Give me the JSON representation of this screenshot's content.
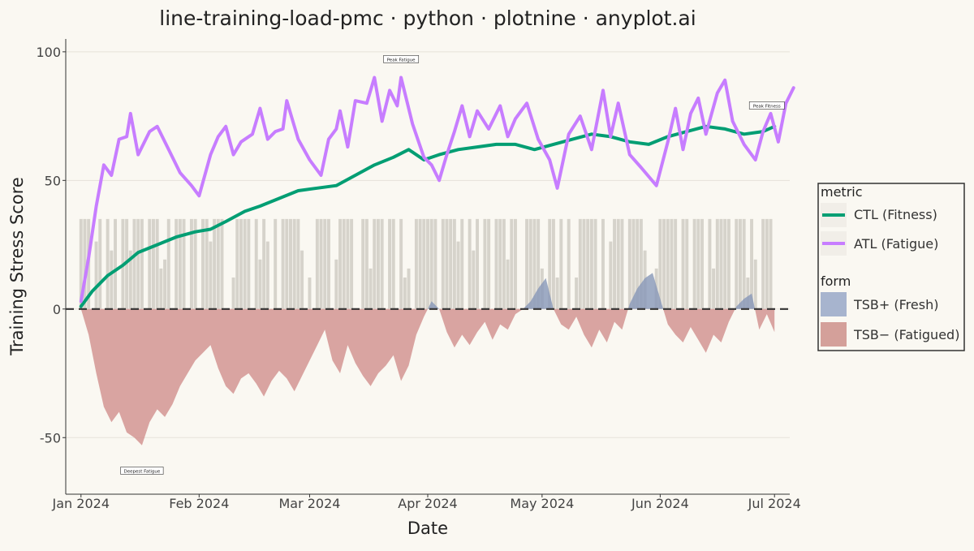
{
  "chart_data": {
    "type": "line",
    "title": "line-training-load-pmc · python · plotnine · anyplot.ai",
    "xlabel": "Date",
    "ylabel": "Training Stress Score",
    "x_range": [
      "2023-12-28",
      "2024-07-05"
    ],
    "ylim": [
      -72,
      105
    ],
    "grid": "horizontal",
    "legend_position": "right",
    "x_ticks": [
      {
        "date": "2024-01-01",
        "label": "Jan 2024"
      },
      {
        "date": "2024-02-01",
        "label": "Feb 2024"
      },
      {
        "date": "2024-03-01",
        "label": "Mar 2024"
      },
      {
        "date": "2024-04-01",
        "label": "Apr 2024"
      },
      {
        "date": "2024-05-01",
        "label": "May 2024"
      },
      {
        "date": "2024-06-01",
        "label": "Jun 2024"
      },
      {
        "date": "2024-07-01",
        "label": "Jul 2024"
      }
    ],
    "y_ticks": [
      {
        "value": 100,
        "label": "100"
      },
      {
        "value": 50,
        "label": "50"
      },
      {
        "value": 0,
        "label": "0"
      },
      {
        "value": -50,
        "label": "-50"
      }
    ],
    "reference_line": {
      "y": 0,
      "style": "dashed"
    },
    "series": [
      {
        "name": "CTL (Fitness)",
        "color": "#009E73",
        "points": [
          [
            "2024-01-01",
            1
          ],
          [
            "2024-01-04",
            7
          ],
          [
            "2024-01-08",
            13
          ],
          [
            "2024-01-12",
            17
          ],
          [
            "2024-01-16",
            22
          ],
          [
            "2024-01-21",
            25
          ],
          [
            "2024-01-26",
            28
          ],
          [
            "2024-01-31",
            30
          ],
          [
            "2024-02-04",
            31
          ],
          [
            "2024-02-08",
            34
          ],
          [
            "2024-02-13",
            38
          ],
          [
            "2024-02-17",
            40
          ],
          [
            "2024-02-22",
            43
          ],
          [
            "2024-02-27",
            46
          ],
          [
            "2024-03-03",
            47
          ],
          [
            "2024-03-08",
            48
          ],
          [
            "2024-03-13",
            52
          ],
          [
            "2024-03-18",
            56
          ],
          [
            "2024-03-23",
            59
          ],
          [
            "2024-03-27",
            62
          ],
          [
            "2024-03-31",
            58
          ],
          [
            "2024-04-04",
            60
          ],
          [
            "2024-04-09",
            62
          ],
          [
            "2024-04-14",
            63
          ],
          [
            "2024-04-19",
            64
          ],
          [
            "2024-04-24",
            64
          ],
          [
            "2024-04-29",
            62
          ],
          [
            "2024-05-04",
            64
          ],
          [
            "2024-05-09",
            66
          ],
          [
            "2024-05-14",
            68
          ],
          [
            "2024-05-19",
            67
          ],
          [
            "2024-05-24",
            65
          ],
          [
            "2024-05-29",
            64
          ],
          [
            "2024-06-03",
            67
          ],
          [
            "2024-06-08",
            69
          ],
          [
            "2024-06-13",
            71
          ],
          [
            "2024-06-18",
            70
          ],
          [
            "2024-06-23",
            68
          ],
          [
            "2024-06-28",
            69
          ],
          [
            "2024-07-01",
            71
          ]
        ]
      },
      {
        "name": "ATL (Fatigue)",
        "color": "#C77DFF",
        "points": [
          [
            "2024-01-01",
            3
          ],
          [
            "2024-01-03",
            20
          ],
          [
            "2024-01-05",
            40
          ],
          [
            "2024-01-07",
            56
          ],
          [
            "2024-01-09",
            52
          ],
          [
            "2024-01-11",
            66
          ],
          [
            "2024-01-13",
            67
          ],
          [
            "2024-01-14",
            76
          ],
          [
            "2024-01-16",
            60
          ],
          [
            "2024-01-19",
            69
          ],
          [
            "2024-01-21",
            71
          ],
          [
            "2024-01-24",
            62
          ],
          [
            "2024-01-27",
            53
          ],
          [
            "2024-01-30",
            48
          ],
          [
            "2024-02-01",
            44
          ],
          [
            "2024-02-04",
            60
          ],
          [
            "2024-02-06",
            67
          ],
          [
            "2024-02-08",
            71
          ],
          [
            "2024-02-10",
            60
          ],
          [
            "2024-02-12",
            65
          ],
          [
            "2024-02-15",
            68
          ],
          [
            "2024-02-17",
            78
          ],
          [
            "2024-02-19",
            66
          ],
          [
            "2024-02-21",
            69
          ],
          [
            "2024-02-23",
            70
          ],
          [
            "2024-02-24",
            81
          ],
          [
            "2024-02-27",
            66
          ],
          [
            "2024-03-01",
            58
          ],
          [
            "2024-03-04",
            52
          ],
          [
            "2024-03-06",
            66
          ],
          [
            "2024-03-08",
            70
          ],
          [
            "2024-03-09",
            77
          ],
          [
            "2024-03-11",
            63
          ],
          [
            "2024-03-13",
            81
          ],
          [
            "2024-03-16",
            80
          ],
          [
            "2024-03-18",
            90
          ],
          [
            "2024-03-20",
            73
          ],
          [
            "2024-03-22",
            85
          ],
          [
            "2024-03-24",
            79
          ],
          [
            "2024-03-25",
            90
          ],
          [
            "2024-03-28",
            72
          ],
          [
            "2024-03-31",
            59
          ],
          [
            "2024-04-02",
            56
          ],
          [
            "2024-04-04",
            50
          ],
          [
            "2024-04-06",
            60
          ],
          [
            "2024-04-08",
            69
          ],
          [
            "2024-04-10",
            79
          ],
          [
            "2024-04-12",
            67
          ],
          [
            "2024-04-14",
            77
          ],
          [
            "2024-04-17",
            70
          ],
          [
            "2024-04-20",
            79
          ],
          [
            "2024-04-22",
            67
          ],
          [
            "2024-04-24",
            74
          ],
          [
            "2024-04-27",
            80
          ],
          [
            "2024-04-30",
            66
          ],
          [
            "2024-05-03",
            58
          ],
          [
            "2024-05-05",
            47
          ],
          [
            "2024-05-08",
            68
          ],
          [
            "2024-05-11",
            75
          ],
          [
            "2024-05-14",
            62
          ],
          [
            "2024-05-17",
            85
          ],
          [
            "2024-05-19",
            67
          ],
          [
            "2024-05-21",
            80
          ],
          [
            "2024-05-24",
            60
          ],
          [
            "2024-05-27",
            55
          ],
          [
            "2024-05-31",
            48
          ],
          [
            "2024-06-03",
            65
          ],
          [
            "2024-06-05",
            78
          ],
          [
            "2024-06-07",
            62
          ],
          [
            "2024-06-09",
            76
          ],
          [
            "2024-06-11",
            82
          ],
          [
            "2024-06-13",
            68
          ],
          [
            "2024-06-16",
            84
          ],
          [
            "2024-06-18",
            89
          ],
          [
            "2024-06-20",
            73
          ],
          [
            "2024-06-23",
            64
          ],
          [
            "2024-06-26",
            58
          ],
          [
            "2024-06-28",
            69
          ],
          [
            "2024-06-30",
            76
          ],
          [
            "2024-07-02",
            65
          ],
          [
            "2024-07-04",
            80
          ],
          [
            "2024-07-06",
            86
          ]
        ]
      }
    ],
    "form_series": [
      {
        "name": "TSB+ (Fresh)",
        "color": "#A7B4CE",
        "fill": "#8797B8"
      },
      {
        "name": "TSB− (Fatigued)",
        "color": "#D4A09A",
        "fill": "#D18F8C"
      }
    ],
    "tsb": [
      [
        "2024-01-01",
        0
      ],
      [
        "2024-01-03",
        -10
      ],
      [
        "2024-01-05",
        -25
      ],
      [
        "2024-01-07",
        -38
      ],
      [
        "2024-01-09",
        -44
      ],
      [
        "2024-01-11",
        -40
      ],
      [
        "2024-01-13",
        -48
      ],
      [
        "2024-01-15",
        -50
      ],
      [
        "2024-01-17",
        -53
      ],
      [
        "2024-01-19",
        -44
      ],
      [
        "2024-01-21",
        -39
      ],
      [
        "2024-01-23",
        -42
      ],
      [
        "2024-01-25",
        -37
      ],
      [
        "2024-01-27",
        -30
      ],
      [
        "2024-01-29",
        -25
      ],
      [
        "2024-01-31",
        -20
      ],
      [
        "2024-02-02",
        -17
      ],
      [
        "2024-02-04",
        -14
      ],
      [
        "2024-02-06",
        -23
      ],
      [
        "2024-02-08",
        -30
      ],
      [
        "2024-02-10",
        -33
      ],
      [
        "2024-02-12",
        -27
      ],
      [
        "2024-02-14",
        -25
      ],
      [
        "2024-02-16",
        -29
      ],
      [
        "2024-02-18",
        -34
      ],
      [
        "2024-02-20",
        -28
      ],
      [
        "2024-02-22",
        -24
      ],
      [
        "2024-02-24",
        -27
      ],
      [
        "2024-02-26",
        -32
      ],
      [
        "2024-02-28",
        -26
      ],
      [
        "2024-03-01",
        -20
      ],
      [
        "2024-03-03",
        -14
      ],
      [
        "2024-03-05",
        -8
      ],
      [
        "2024-03-07",
        -20
      ],
      [
        "2024-03-09",
        -25
      ],
      [
        "2024-03-11",
        -14
      ],
      [
        "2024-03-13",
        -21
      ],
      [
        "2024-03-15",
        -26
      ],
      [
        "2024-03-17",
        -30
      ],
      [
        "2024-03-19",
        -25
      ],
      [
        "2024-03-21",
        -22
      ],
      [
        "2024-03-23",
        -18
      ],
      [
        "2024-03-25",
        -28
      ],
      [
        "2024-03-27",
        -22
      ],
      [
        "2024-03-29",
        -10
      ],
      [
        "2024-03-31",
        -3
      ],
      [
        "2024-04-02",
        3
      ],
      [
        "2024-04-04",
        0
      ],
      [
        "2024-04-06",
        -9
      ],
      [
        "2024-04-08",
        -15
      ],
      [
        "2024-04-10",
        -10
      ],
      [
        "2024-04-12",
        -14
      ],
      [
        "2024-04-14",
        -9
      ],
      [
        "2024-04-16",
        -5
      ],
      [
        "2024-04-18",
        -12
      ],
      [
        "2024-04-20",
        -6
      ],
      [
        "2024-04-22",
        -8
      ],
      [
        "2024-04-24",
        -2
      ],
      [
        "2024-04-26",
        0
      ],
      [
        "2024-04-28",
        3
      ],
      [
        "2024-04-30",
        8
      ],
      [
        "2024-05-02",
        12
      ],
      [
        "2024-05-04",
        0
      ],
      [
        "2024-05-06",
        -6
      ],
      [
        "2024-05-08",
        -8
      ],
      [
        "2024-05-10",
        -3
      ],
      [
        "2024-05-12",
        -10
      ],
      [
        "2024-05-14",
        -15
      ],
      [
        "2024-05-16",
        -8
      ],
      [
        "2024-05-18",
        -13
      ],
      [
        "2024-05-20",
        -5
      ],
      [
        "2024-05-22",
        -8
      ],
      [
        "2024-05-24",
        2
      ],
      [
        "2024-05-26",
        8
      ],
      [
        "2024-05-28",
        12
      ],
      [
        "2024-05-30",
        14
      ],
      [
        "2024-06-01",
        4
      ],
      [
        "2024-06-03",
        -6
      ],
      [
        "2024-06-05",
        -10
      ],
      [
        "2024-06-07",
        -13
      ],
      [
        "2024-06-09",
        -7
      ],
      [
        "2024-06-11",
        -12
      ],
      [
        "2024-06-13",
        -17
      ],
      [
        "2024-06-15",
        -10
      ],
      [
        "2024-06-17",
        -13
      ],
      [
        "2024-06-19",
        -5
      ],
      [
        "2024-06-21",
        1
      ],
      [
        "2024-06-23",
        4
      ],
      [
        "2024-06-25",
        6
      ],
      [
        "2024-06-27",
        -8
      ],
      [
        "2024-06-29",
        -2
      ],
      [
        "2024-07-01",
        -9
      ]
    ],
    "daily_tss": {
      "color": "#D6D3CB",
      "top": 35,
      "note_values_vary_per_day": true
    },
    "annotations": [
      {
        "text": "Peak Fatigue",
        "date": "2024-03-25",
        "y": 97
      },
      {
        "text": "Peak Fitness",
        "date": "2024-06-29",
        "y": 79
      },
      {
        "text": "Deepest Fatigue",
        "date": "2024-01-17",
        "y": -63
      }
    ],
    "legend": {
      "metric_title": "metric",
      "metric_items": [
        "CTL (Fitness)",
        "ATL (Fatigue)"
      ],
      "form_title": "form",
      "form_items": [
        "TSB+ (Fresh)",
        "TSB− (Fatigued)"
      ]
    }
  }
}
